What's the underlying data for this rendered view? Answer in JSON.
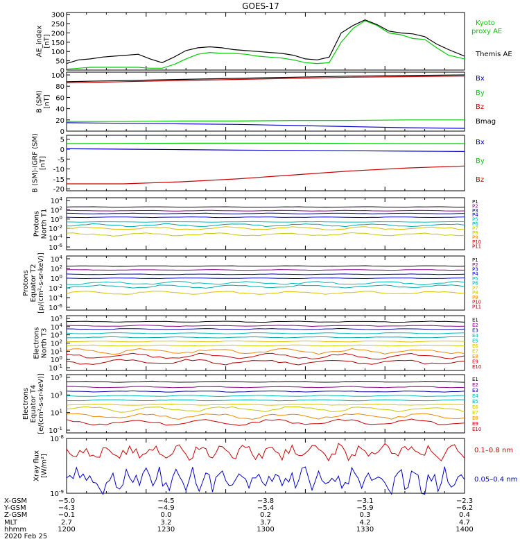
{
  "colors": {
    "black": "#000000",
    "green": "#00cc00",
    "blue": "#0000cc",
    "red": "#cc0000",
    "darkblue": "#0000aa",
    "purple": "#880088",
    "cyan": "#00bbbb",
    "teal": "#00aaaa",
    "yellowgreen": "#a0c000",
    "yellow": "#d8c000",
    "orange": "#ee8800",
    "darkred": "#aa0000",
    "magenta": "#cc00cc",
    "olive": "#c8c800"
  },
  "chart_data": [
    {
      "type": "line",
      "title": "GOES-17",
      "ylabel": "AE_index\n[nT]",
      "ylim": [
        0,
        310
      ],
      "yticks": [
        0,
        50,
        100,
        150,
        200,
        250,
        300
      ],
      "x": [
        0,
        0.03,
        0.06,
        0.09,
        0.12,
        0.15,
        0.18,
        0.21,
        0.24,
        0.27,
        0.3,
        0.33,
        0.36,
        0.39,
        0.42,
        0.45,
        0.48,
        0.51,
        0.54,
        0.57,
        0.6,
        0.63,
        0.66,
        0.69,
        0.72,
        0.75,
        0.78,
        0.81,
        0.84,
        0.87,
        0.9,
        0.93,
        0.96,
        1.0
      ],
      "series": [
        {
          "name": "Kyoto proxy AE",
          "color": "green",
          "values": [
            5,
            10,
            15,
            15,
            15,
            15,
            15,
            10,
            10,
            30,
            60,
            85,
            95,
            90,
            90,
            85,
            75,
            70,
            65,
            55,
            40,
            35,
            40,
            150,
            225,
            265,
            240,
            200,
            190,
            170,
            165,
            120,
            80,
            60
          ]
        },
        {
          "name": "Themis AE",
          "color": "black",
          "values": [
            35,
            55,
            60,
            70,
            75,
            80,
            85,
            60,
            40,
            70,
            105,
            120,
            125,
            120,
            110,
            105,
            100,
            95,
            90,
            80,
            60,
            55,
            70,
            200,
            240,
            270,
            245,
            210,
            200,
            195,
            180,
            140,
            110,
            75
          ]
        }
      ],
      "legend": [
        {
          "label": "Kyoto\nproxy AE",
          "color": "green"
        },
        {
          "label": "Themis AE",
          "color": "black"
        }
      ]
    },
    {
      "type": "line",
      "ylabel": "B (SM)\n[nT]",
      "ylim": [
        0,
        105
      ],
      "yticks": [
        0,
        20,
        40,
        60,
        80,
        100
      ],
      "series": [
        {
          "name": "Bx",
          "color": "blue",
          "values": [
            15,
            14,
            13,
            12,
            10,
            8,
            6,
            5
          ]
        },
        {
          "name": "By",
          "color": "green",
          "values": [
            17,
            17,
            18,
            18,
            19,
            19,
            20,
            20
          ]
        },
        {
          "name": "Bz",
          "color": "red",
          "values": [
            86,
            88,
            90,
            92,
            94,
            96,
            97,
            98
          ]
        },
        {
          "name": "Bmag",
          "color": "black",
          "values": [
            88,
            90,
            92,
            94,
            96,
            98,
            99,
            100
          ]
        }
      ],
      "legend": [
        {
          "label": "Bx",
          "color": "blue"
        },
        {
          "label": "By",
          "color": "green"
        },
        {
          "label": "Bz",
          "color": "red"
        },
        {
          "label": "Bmag",
          "color": "black"
        }
      ]
    },
    {
      "type": "line",
      "ylabel": "B (SM)-IGRF (SM)\n[nT]",
      "ylim": [
        -21,
        7
      ],
      "yticks": [
        -20,
        -15,
        -10,
        -5,
        0,
        5
      ],
      "series": [
        {
          "name": "Bx",
          "color": "blue",
          "values": [
            0.2,
            0.0,
            -0.2,
            -0.5,
            -0.6,
            -0.8,
            -1.0,
            -1.2
          ]
        },
        {
          "name": "By",
          "color": "green",
          "values": [
            2.8,
            2.9,
            3.0,
            3.0,
            3.0,
            2.9,
            2.8,
            2.8
          ]
        },
        {
          "name": "Bz",
          "color": "red",
          "values": [
            -17.5,
            -17.5,
            -16.5,
            -15,
            -13,
            -11,
            -9.5,
            -8.5
          ]
        }
      ],
      "legend": [
        {
          "label": "Bx",
          "color": "blue"
        },
        {
          "label": "By",
          "color": "green"
        },
        {
          "label": "Bz",
          "color": "red"
        }
      ]
    },
    {
      "type": "line",
      "ylabel": "Protons\nNorth T1",
      "scale": "log",
      "yticks": [
        "10^4",
        "10^2",
        "10^0",
        "10^-2",
        "10^-4",
        "10^-6"
      ],
      "levels_log10": [
        2.6,
        1.8,
        1.2,
        0.4,
        -0.6,
        -1.3,
        -2.0,
        -3.3
      ],
      "legend": [
        {
          "label": "P1",
          "color": "black"
        },
        {
          "label": "P2",
          "color": "purple"
        },
        {
          "label": "P3",
          "color": "darkblue"
        },
        {
          "label": "P4",
          "color": "blue"
        },
        {
          "label": "P5",
          "color": "cyan"
        },
        {
          "label": "P6",
          "color": "teal"
        },
        {
          "label": "P7",
          "color": "yellow"
        },
        {
          "label": "P8",
          "color": "olive"
        },
        {
          "label": "P9",
          "color": "orange"
        },
        {
          "label": "P10",
          "color": "red"
        },
        {
          "label": "P11",
          "color": "darkred"
        }
      ]
    },
    {
      "type": "line",
      "ylabel": "Protons\nEquator T2\n[p/(cm²-s-sr-keV)]",
      "scale": "log",
      "yticks": [
        "10^4",
        "10^2",
        "10^0",
        "10^-2",
        "10^-4",
        "10^-6"
      ],
      "levels_log10": [
        2.5,
        1.7,
        0.8,
        0.0,
        -1.0,
        -1.7,
        -3.0
      ],
      "legend": [
        {
          "label": "P1",
          "color": "black"
        },
        {
          "label": "P2",
          "color": "purple"
        },
        {
          "label": "P3",
          "color": "darkblue"
        },
        {
          "label": "P4",
          "color": "blue"
        },
        {
          "label": "P5",
          "color": "cyan"
        },
        {
          "label": "P6",
          "color": "teal"
        },
        {
          "label": "P7",
          "color": "yellow"
        },
        {
          "label": "P8",
          "color": "olive"
        },
        {
          "label": "P9",
          "color": "orange"
        },
        {
          "label": "P10",
          "color": "red"
        },
        {
          "label": "P11",
          "color": "darkred"
        }
      ]
    },
    {
      "type": "line",
      "ylabel": "Electrons\nNorth T3",
      "scale": "log",
      "yticks": [
        "10^5",
        "10^4",
        "10^3",
        "10^2",
        "10^1",
        "10^0",
        "10^-1"
      ],
      "levels_log10": [
        4.6,
        4.1,
        3.7,
        3.2,
        2.7,
        2.2,
        1.7,
        1.0,
        0.4,
        -0.3
      ],
      "legend": [
        {
          "label": "E1",
          "color": "black"
        },
        {
          "label": "E2",
          "color": "purple"
        },
        {
          "label": "E3",
          "color": "darkblue"
        },
        {
          "label": "E4",
          "color": "cyan"
        },
        {
          "label": "E5",
          "color": "teal"
        },
        {
          "label": "E6",
          "color": "yellow"
        },
        {
          "label": "E7",
          "color": "olive"
        },
        {
          "label": "E8",
          "color": "orange"
        },
        {
          "label": "E9",
          "color": "red"
        },
        {
          "label": "E10",
          "color": "darkred"
        }
      ]
    },
    {
      "type": "line",
      "ylabel": "Electrons\nEquator T4\n[e/(cm²-s-sr-keV)]",
      "scale": "log",
      "yticks": [
        "10^5",
        "10^3",
        "10^1",
        "10^-1"
      ],
      "levels_log10": [
        4.5,
        3.9,
        3.4,
        2.9,
        2.4,
        1.9,
        1.4,
        0.6,
        -0.1
      ],
      "legend": [
        {
          "label": "E1",
          "color": "black"
        },
        {
          "label": "E2",
          "color": "purple"
        },
        {
          "label": "E3",
          "color": "darkblue"
        },
        {
          "label": "E4",
          "color": "cyan"
        },
        {
          "label": "E5",
          "color": "teal"
        },
        {
          "label": "E6",
          "color": "yellow"
        },
        {
          "label": "E7",
          "color": "olive"
        },
        {
          "label": "E8",
          "color": "orange"
        },
        {
          "label": "E9",
          "color": "red"
        },
        {
          "label": "E10",
          "color": "darkred"
        }
      ]
    },
    {
      "type": "line",
      "ylabel": "Xray flux\n[W/m²]",
      "scale": "log",
      "yticks": [
        "10^-8",
        "10^-9"
      ],
      "series": [
        {
          "name": "0.1-0.8 nm",
          "color": "red"
        },
        {
          "name": "0.05-0.4 nm",
          "color": "blue"
        }
      ],
      "legend": [
        {
          "label": "0.1–0.8 nm",
          "color": "red"
        },
        {
          "label": "0.05–0.4 nm",
          "color": "blue"
        }
      ]
    }
  ],
  "footer": {
    "row_labels": [
      "X-GSM",
      "Y-GSM",
      "Z-GSM",
      "MLT",
      "hhmm",
      "2020 Feb 25"
    ],
    "columns": [
      [
        "−5.0",
        "−4.3",
        "−0.1",
        "2.7",
        "1200"
      ],
      [
        "−4.5",
        "−4.9",
        "0.0",
        "3.2",
        "1230"
      ],
      [
        "−3.8",
        "−5.4",
        "0.2",
        "3.7",
        "1300"
      ],
      [
        "−3.1",
        "−5.9",
        "0.3",
        "4.2",
        "1330"
      ],
      [
        "−2.3",
        "−6.2",
        "0.4",
        "4.7",
        "1400"
      ]
    ]
  }
}
